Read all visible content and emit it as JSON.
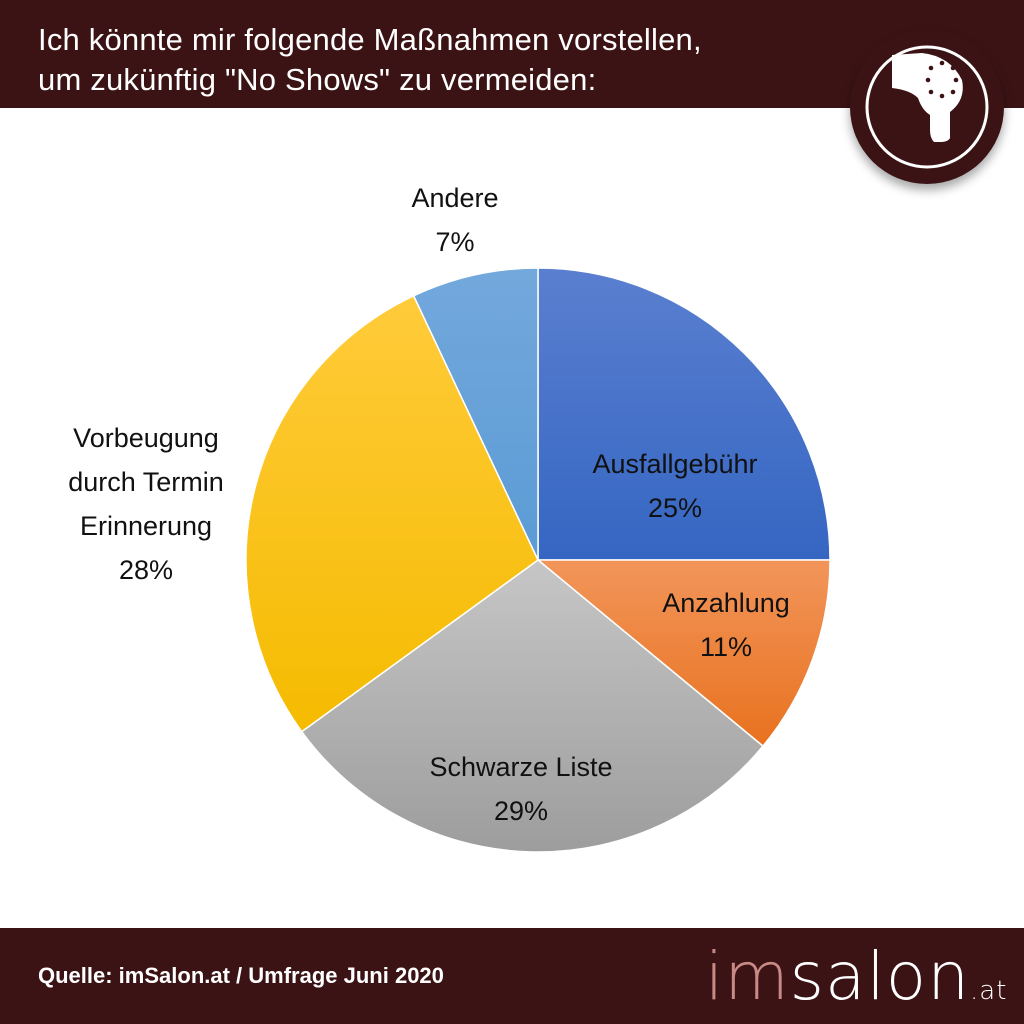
{
  "header": {
    "title_line1": "Ich könnte mir folgende Maßnahmen vorstellen,",
    "title_line2": "um zukünftig \"No Shows\" zu vermeiden:",
    "icon": "hair-dryer-icon"
  },
  "footer": {
    "source": "Quelle: imSalon.at / Umfrage Juni 2020",
    "logo": {
      "part1": "im",
      "part2": "salon",
      "part3": ".at"
    }
  },
  "chart_data": {
    "type": "pie",
    "title": "Ich könnte mir folgende Maßnahmen vorstellen, um zukünftig \"No Shows\" zu vermeiden:",
    "start_angle": "12 o'clock, clockwise",
    "slices": [
      {
        "label": "Ausfallgebühr",
        "value": 25,
        "value_label": "25%",
        "color": "#4472c4"
      },
      {
        "label": "Anzahlung",
        "value": 11,
        "value_label": "11%",
        "color": "#ed7d31"
      },
      {
        "label": "Schwarze Liste",
        "value": 29,
        "value_label": "29%",
        "color": "#a5a5a5"
      },
      {
        "label": "Vorbeugung durch Termin Erinnerung",
        "label_lines": [
          "Vorbeugung",
          "durch Termin",
          "Erinnerung"
        ],
        "value": 28,
        "value_label": "28%",
        "color": "#ffc000"
      },
      {
        "label": "Andere",
        "value": 7,
        "value_label": "7%",
        "color": "#5b9bd5"
      }
    ]
  }
}
